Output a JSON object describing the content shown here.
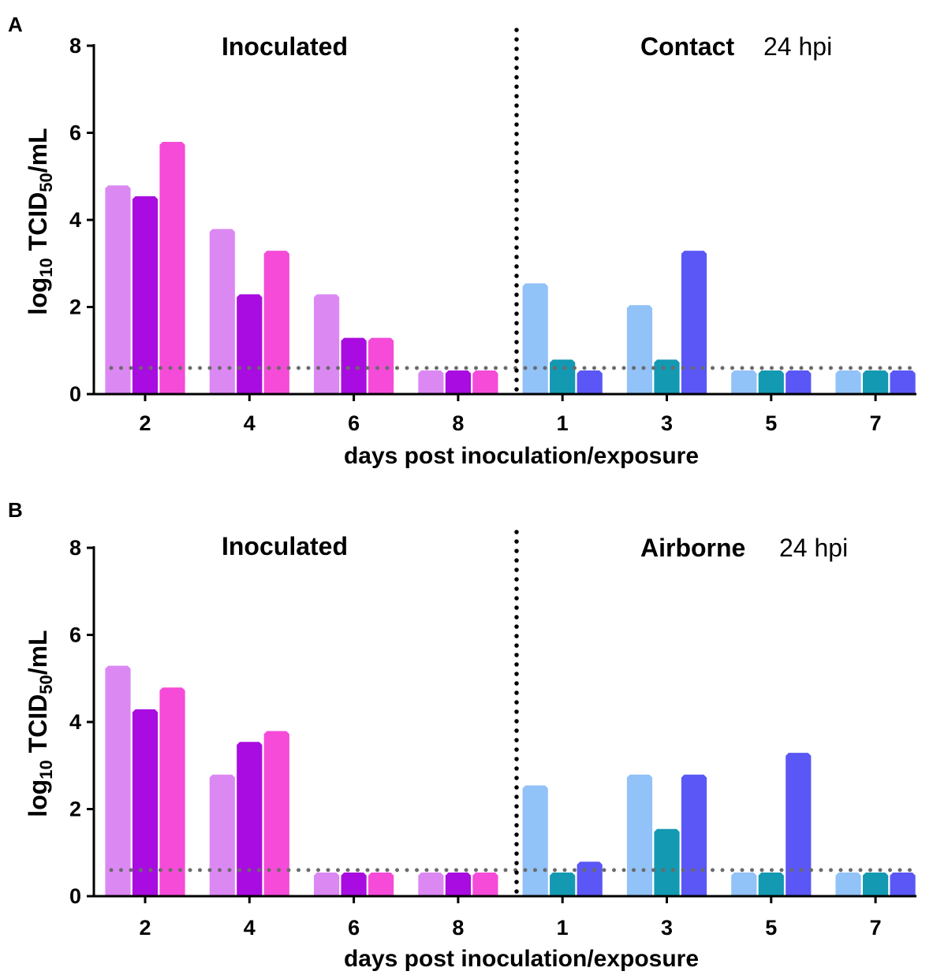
{
  "chart_data": [
    {
      "type": "bar",
      "panel": "A",
      "ylabel_main": "log",
      "ylabel_sub1": "10",
      "ylabel_mid": " TCID",
      "ylabel_sub2": "50",
      "ylabel_end": "/mL",
      "xlabel": "days post inoculation/exposure",
      "ylim": [
        0,
        8
      ],
      "yticks": [
        "0",
        "2",
        "4",
        "6",
        "8"
      ],
      "detection_limit": 0.6,
      "left_title": "Inoculated",
      "right_title": "Contact",
      "right_note": "24 hpi",
      "groups": [
        {
          "label": "2",
          "side": "inoculated",
          "values": [
            4.8,
            4.55,
            5.8
          ]
        },
        {
          "label": "4",
          "side": "inoculated",
          "values": [
            3.8,
            2.3,
            3.3
          ]
        },
        {
          "label": "6",
          "side": "inoculated",
          "values": [
            2.3,
            1.3,
            1.3
          ]
        },
        {
          "label": "8",
          "side": "inoculated",
          "values": [
            0.55,
            0.55,
            0.55
          ]
        },
        {
          "label": "1",
          "side": "exposed",
          "values": [
            2.55,
            0.8,
            0.55
          ]
        },
        {
          "label": "3",
          "side": "exposed",
          "values": [
            2.05,
            0.8,
            3.3
          ]
        },
        {
          "label": "5",
          "side": "exposed",
          "values": [
            0.55,
            0.55,
            0.55
          ]
        },
        {
          "label": "7",
          "side": "exposed",
          "values": [
            0.55,
            0.55,
            0.55
          ]
        }
      ]
    },
    {
      "type": "bar",
      "panel": "B",
      "ylabel_main": "log",
      "ylabel_sub1": "10",
      "ylabel_mid": " TCID",
      "ylabel_sub2": "50",
      "ylabel_end": "/mL",
      "xlabel": "days post inoculation/exposure",
      "ylim": [
        0,
        8
      ],
      "yticks": [
        "0",
        "2",
        "4",
        "6",
        "8"
      ],
      "detection_limit": 0.6,
      "left_title": "Inoculated",
      "right_title": "Airborne",
      "right_note": "24 hpi",
      "groups": [
        {
          "label": "2",
          "side": "inoculated",
          "values": [
            5.3,
            4.3,
            4.8
          ]
        },
        {
          "label": "4",
          "side": "inoculated",
          "values": [
            2.8,
            3.55,
            3.8
          ]
        },
        {
          "label": "6",
          "side": "inoculated",
          "values": [
            0.55,
            0.55,
            0.55
          ]
        },
        {
          "label": "8",
          "side": "inoculated",
          "values": [
            0.55,
            0.55,
            0.55
          ]
        },
        {
          "label": "1",
          "side": "exposed",
          "values": [
            2.55,
            0.55,
            0.8
          ]
        },
        {
          "label": "3",
          "side": "exposed",
          "values": [
            2.8,
            1.55,
            2.8
          ]
        },
        {
          "label": "5",
          "side": "exposed",
          "values": [
            0.55,
            0.55,
            3.3
          ]
        },
        {
          "label": "7",
          "side": "exposed",
          "values": [
            0.55,
            0.55,
            0.55
          ]
        }
      ]
    }
  ],
  "colors": {
    "inoculated": [
      "#dc88f3",
      "#a90ce0",
      "#f54bd8"
    ],
    "exposed": [
      "#91c2f8",
      "#1399b2",
      "#5a57f6"
    ],
    "limit_line": "#6b6b6b",
    "divider": "#000000",
    "axis": "#000000"
  }
}
